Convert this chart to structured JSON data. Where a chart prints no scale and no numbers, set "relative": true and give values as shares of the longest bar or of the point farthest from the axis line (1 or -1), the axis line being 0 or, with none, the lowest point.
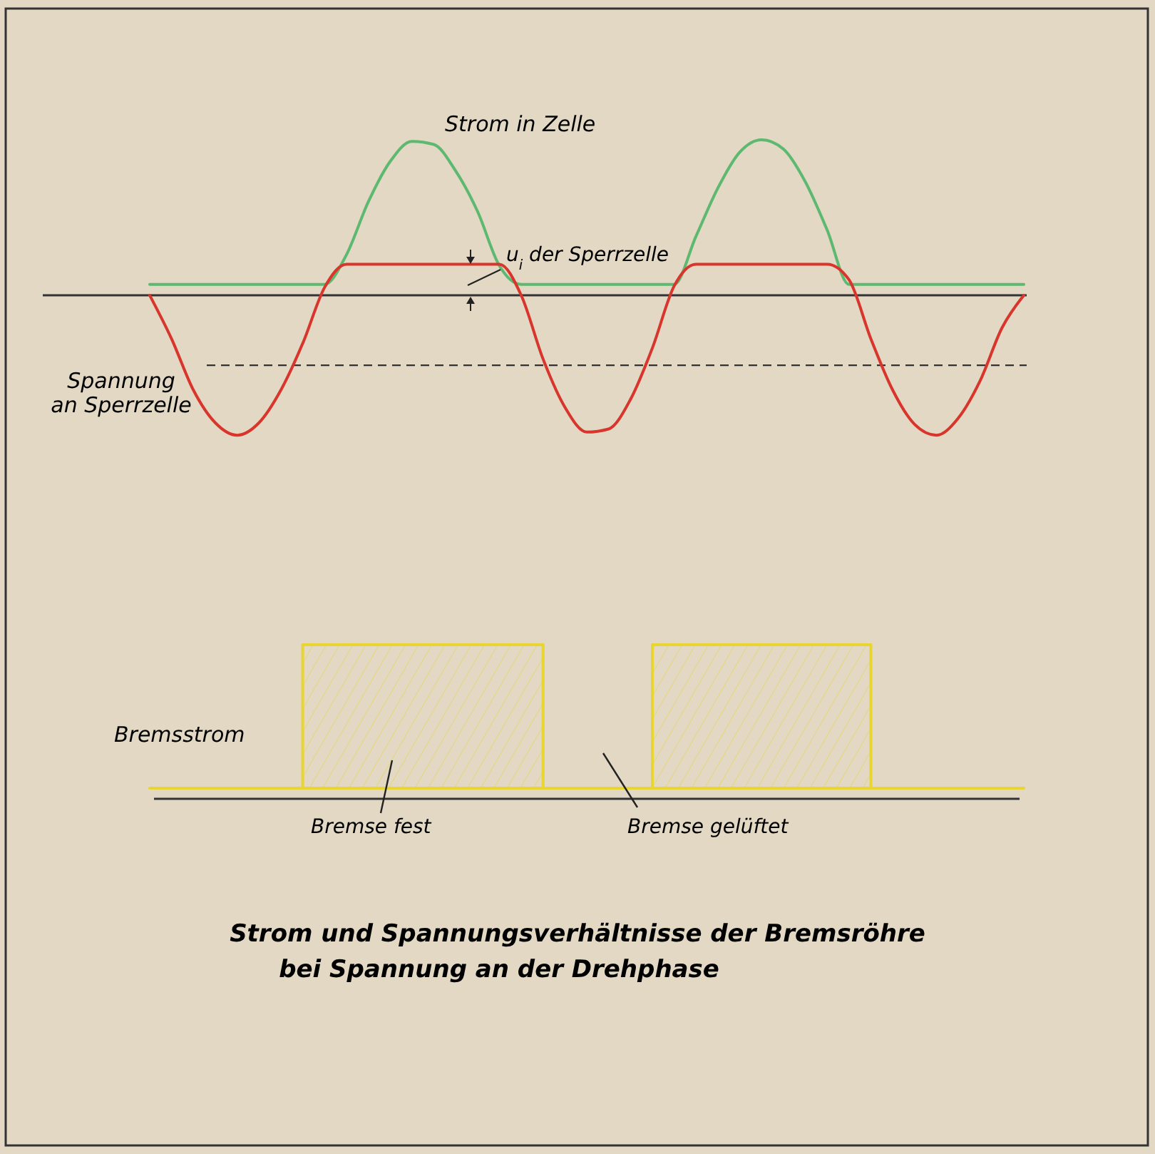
{
  "chart_data": [
    {
      "type": "line",
      "relative": true,
      "categories": [
        null,
        null,
        null,
        null,
        null,
        null,
        null,
        null,
        null,
        null,
        null,
        null,
        null,
        null,
        null,
        null,
        null,
        null,
        null,
        null,
        null,
        null,
        null,
        null,
        null,
        null,
        null,
        null,
        null,
        null,
        null,
        null,
        null,
        null,
        null,
        null,
        null,
        null,
        null,
        null,
        null
      ],
      "series": [
        {
          "name": "Strom in Zelle",
          "color": "#5db870",
          "values": [
            0.07,
            0.07,
            0.07,
            0.07,
            0.07,
            0.07,
            0.07,
            0.07,
            0.07,
            0.26,
            0.6,
            0.86,
            0.99,
            0.97,
            0.8,
            0.54,
            0.19,
            0.07,
            0.07,
            0.07,
            0.07,
            0.07,
            0.07,
            0.07,
            0.07,
            0.38,
            0.69,
            0.92,
            1,
            0.94,
            0.73,
            0.42,
            0.07,
            0.07,
            0.07,
            0.07,
            0.07,
            0.07,
            0.07,
            0.07,
            0.07
          ]
        },
        {
          "name": "Spannung an Sperrzelle",
          "color": "#d8352c",
          "values": [
            0,
            -0.28,
            -0.61,
            -0.82,
            -0.9,
            -0.82,
            -0.61,
            -0.31,
            0.05,
            0.2,
            0.2,
            0.2,
            0.2,
            0.2,
            0.2,
            0.2,
            0.2,
            0,
            -0.41,
            -0.72,
            -0.88,
            -0.86,
            -0.67,
            -0.34,
            0.06,
            0.2,
            0.2,
            0.2,
            0.2,
            0.2,
            0.2,
            0.2,
            0.1,
            -0.28,
            -0.61,
            -0.83,
            -0.9,
            -0.79,
            -0.55,
            -0.21,
            0
          ]
        }
      ],
      "ref_lines": [
        {
          "axis": "y",
          "value": -0.45,
          "line_style": "dashed",
          "color": "#333333"
        }
      ],
      "annotations": [
        "u$_{i}$ der Sperrzelle"
      ]
    },
    {
      "type": "step",
      "relative": true,
      "title": "Strom und Spannungsverhältnisse der Bremsröhre",
      "subtitle": "bei Spannung an der Drehphase",
      "categories": [
        null,
        null,
        null,
        null,
        null,
        null,
        null,
        null,
        null,
        null,
        null,
        null,
        null,
        null,
        null,
        null,
        null,
        null,
        null,
        null,
        null,
        null,
        null,
        null,
        null,
        null,
        null,
        null,
        null,
        null,
        null,
        null,
        null,
        null,
        null,
        null,
        null,
        null,
        null,
        null,
        null
      ],
      "series": [
        {
          "name": "Bremsstrom",
          "type": "area",
          "color": "#e8d530",
          "values": [
            0.07,
            0.07,
            0.07,
            0.07,
            0.07,
            0.07,
            0.07,
            1,
            1,
            1,
            1,
            1,
            1,
            1,
            1,
            1,
            1,
            1,
            0.07,
            0.07,
            0.07,
            0.07,
            0.07,
            1,
            1,
            1,
            1,
            1,
            1,
            1,
            1,
            1,
            1,
            0.07,
            0.07,
            0.07,
            0.07,
            0.07,
            0.07,
            0.07,
            0.07
          ]
        }
      ],
      "annotations": [
        "Bremse fest",
        "Bremse gelüftet"
      ]
    }
  ]
}
